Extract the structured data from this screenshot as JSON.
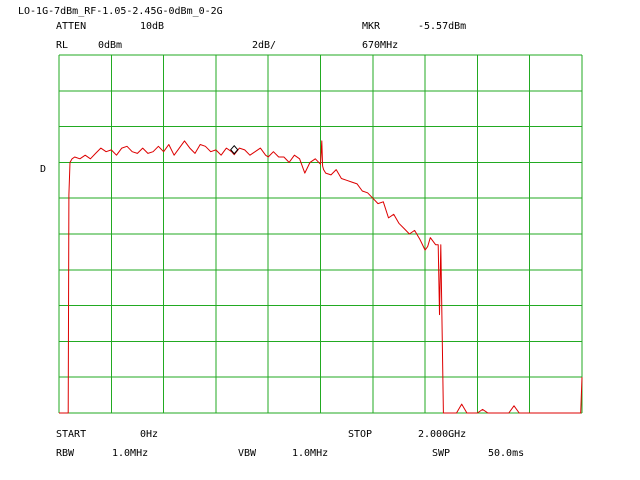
{
  "header": {
    "title": "LO-1G-7dBm_RF-1.05-2.45G-0dBm_0-2G",
    "atten_label": "ATTEN",
    "atten_value": "10dB",
    "mkr_label": "MKR",
    "mkr_value": "-5.57dBm",
    "rl_label": "RL",
    "rl_value": "0dBm",
    "scale_value": "2dB/",
    "mkr_freq": "670MHz"
  },
  "side": {
    "d_marker": "D"
  },
  "footer": {
    "start_label": "START",
    "start_value": "0Hz",
    "stop_label": "STOP",
    "stop_value": "2.000GHz",
    "rbw_label": "RBW",
    "rbw_value": "1.0MHz",
    "vbw_label": "VBW",
    "vbw_value": "1.0MHz",
    "swp_label": "SWP",
    "swp_value": "50.0ms"
  },
  "colors": {
    "grid": "#22aa22",
    "trace": "#dd0000",
    "marker": "#000000",
    "text": "#000000"
  },
  "chart_data": {
    "type": "line",
    "xlabel": "",
    "ylabel": "",
    "xlim": [
      0,
      2000
    ],
    "ylim": [
      -20,
      0
    ],
    "x_unit": "MHz",
    "y_unit": "dBm",
    "grid": true,
    "marker": {
      "x": 670,
      "y": -5.57
    },
    "series": [
      {
        "x": [
          0,
          20,
          35,
          38,
          42,
          50,
          60,
          80,
          100,
          120,
          140,
          160,
          180,
          200,
          220,
          240,
          260,
          280,
          300,
          320,
          340,
          360,
          380,
          400,
          420,
          440,
          460,
          480,
          500,
          520,
          540,
          560,
          580,
          600,
          620,
          640,
          660,
          670,
          690,
          710,
          730,
          750,
          770,
          790,
          800,
          820,
          840,
          860,
          880,
          900,
          920,
          940,
          960,
          980,
          1000,
          1005,
          1008,
          1012,
          1020,
          1040,
          1060,
          1080,
          1100,
          1120,
          1140,
          1160,
          1180,
          1200,
          1220,
          1240,
          1260,
          1280,
          1300,
          1320,
          1340,
          1360,
          1380,
          1400,
          1410,
          1420,
          1440,
          1450,
          1455,
          1460,
          1470,
          1480,
          1500,
          1520,
          1540,
          1560,
          1580,
          1600,
          1620,
          1640,
          1660,
          1680,
          1700,
          1720,
          1740,
          1760,
          1780,
          1800,
          1820,
          1840,
          1860,
          1880,
          1900,
          1920,
          1940,
          1960,
          1980,
          1995,
          2000
        ],
        "y": [
          -20,
          -20,
          -20,
          -7.8,
          -6.0,
          -5.8,
          -5.7,
          -5.8,
          -5.6,
          -5.8,
          -5.5,
          -5.2,
          -5.4,
          -5.3,
          -5.6,
          -5.2,
          -5.1,
          -5.4,
          -5.5,
          -5.2,
          -5.5,
          -5.4,
          -5.1,
          -5.4,
          -5.0,
          -5.6,
          -5.2,
          -4.8,
          -5.2,
          -5.5,
          -5.0,
          -5.1,
          -5.4,
          -5.3,
          -5.6,
          -5.2,
          -5.4,
          -5.57,
          -5.2,
          -5.3,
          -5.6,
          -5.4,
          -5.2,
          -5.6,
          -5.7,
          -5.4,
          -5.7,
          -5.7,
          -6.0,
          -5.6,
          -5.8,
          -6.6,
          -6.0,
          -5.8,
          -6.1,
          -4.8,
          -6.2,
          -6.4,
          -6.6,
          -6.7,
          -6.4,
          -6.9,
          -7.0,
          -7.1,
          -7.2,
          -7.6,
          -7.7,
          -8.0,
          -8.3,
          -8.2,
          -9.1,
          -8.9,
          -9.4,
          -9.7,
          -10.0,
          -9.8,
          -10.3,
          -10.9,
          -10.7,
          -10.2,
          -10.6,
          -10.6,
          -14.5,
          -10.6,
          -20,
          -20,
          -20,
          -20,
          -19.5,
          -20,
          -20,
          -20,
          -19.8,
          -20,
          -20,
          -20,
          -20,
          -20,
          -19.6,
          -20,
          -20,
          -20,
          -20,
          -20,
          -20,
          -20,
          -20,
          -20,
          -20,
          -20,
          -20,
          -20,
          -18.0
        ]
      }
    ]
  }
}
